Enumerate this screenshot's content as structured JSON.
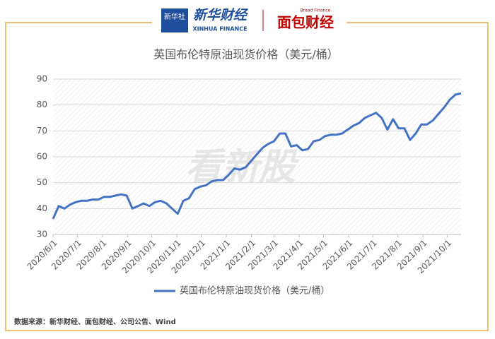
{
  "header": {
    "logo_small": "新华社",
    "brand1": "新华财经",
    "brand1_en": "XINHUA FINANCE",
    "brand2": "面包财经",
    "brand2_en": "Bread Finance"
  },
  "source": "数据来源：新华财经、面包财经、公司公告、Wind",
  "watermark": "看新股",
  "chart_data": {
    "type": "line",
    "title": "英国布伦特原油现货价格（美元/桶）",
    "x": [
      "2020/6/1",
      "2020/6/8",
      "2020/6/15",
      "2020/6/22",
      "2020/6/29",
      "2020/7/6",
      "2020/7/13",
      "2020/7/20",
      "2020/7/27",
      "2020/8/3",
      "2020/8/10",
      "2020/8/17",
      "2020/8/24",
      "2020/8/31",
      "2020/9/7",
      "2020/9/14",
      "2020/9/21",
      "2020/9/28",
      "2020/10/5",
      "2020/10/12",
      "2020/10/19",
      "2020/10/26",
      "2020/11/2",
      "2020/11/9",
      "2020/11/16",
      "2020/11/23",
      "2020/11/30",
      "2020/12/7",
      "2020/12/14",
      "2020/12/21",
      "2020/12/28",
      "2021/1/4",
      "2021/1/11",
      "2021/1/18",
      "2021/1/25",
      "2021/2/1",
      "2021/2/8",
      "2021/2/15",
      "2021/2/22",
      "2021/3/1",
      "2021/3/8",
      "2021/3/15",
      "2021/3/22",
      "2021/3/29",
      "2021/4/5",
      "2021/4/12",
      "2021/4/19",
      "2021/4/26",
      "2021/5/3",
      "2021/5/10",
      "2021/5/17",
      "2021/5/24",
      "2021/5/31",
      "2021/6/7",
      "2021/6/14",
      "2021/6/21",
      "2021/6/28",
      "2021/7/5",
      "2021/7/12",
      "2021/7/19",
      "2021/7/26",
      "2021/8/2",
      "2021/8/9",
      "2021/8/16",
      "2021/8/23",
      "2021/8/30",
      "2021/9/6",
      "2021/9/13",
      "2021/9/20",
      "2021/9/27",
      "2021/10/4",
      "2021/10/11",
      "2021/10/18"
    ],
    "series": [
      {
        "name": "英国布伦特原油现货价格（美元/桶）",
        "color": "#4472c4",
        "values": [
          36,
          41,
          40,
          41.5,
          42.5,
          43,
          43,
          43.5,
          43.5,
          44.5,
          44.5,
          45,
          45.5,
          45,
          40,
          41,
          42,
          41,
          42.5,
          43,
          42,
          40,
          38,
          43,
          44,
          47.5,
          48.5,
          49,
          50.5,
          51,
          51,
          53,
          55.5,
          55,
          56,
          58.5,
          61,
          63.5,
          65,
          66,
          69,
          69,
          64,
          64.5,
          62.5,
          63,
          66,
          66.5,
          68,
          68.5,
          68.5,
          69,
          70.5,
          72,
          73,
          75,
          76,
          77,
          75,
          70.5,
          74.5,
          71,
          71,
          66.5,
          69,
          72.5,
          72.5,
          74,
          76.5,
          79,
          82,
          84,
          84.5
        ]
      }
    ],
    "xlim": [
      "2020/6/1",
      "2021/10/18"
    ],
    "xticks": [
      "2020/6/1",
      "2020/7/1",
      "2020/8/1",
      "2020/9/1",
      "2020/10/1",
      "2020/11/1",
      "2020/12/1",
      "2021/1/1",
      "2021/2/1",
      "2021/3/1",
      "2021/4/1",
      "2021/5/1",
      "2021/6/1",
      "2021/7/1",
      "2021/8/1",
      "2021/9/1",
      "2021/10/1"
    ],
    "ylim": [
      30,
      90
    ],
    "yticks": [
      30,
      40,
      50,
      60,
      70,
      80,
      90
    ],
    "grid": true,
    "legend": "bottom"
  }
}
